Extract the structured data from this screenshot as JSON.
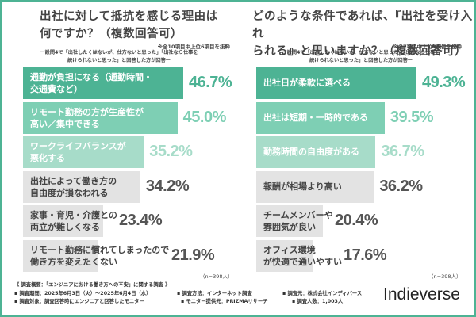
{
  "colors": {
    "border": "#4db394",
    "bar_dark": "#4db394",
    "bar_mid": "#7ecfb4",
    "bar_light": "#a7dcc9",
    "bar_gray": "#e3e3e3",
    "value_dark": "#4db394",
    "value_mid": "#7ecfb4",
    "value_light": "#a7dcc9",
    "value_gray": "#555555"
  },
  "chart_data": [
    {
      "type": "bar",
      "orientation": "horizontal",
      "title": "出社に対して抵抗を感じる理由は何ですか？（複数回答可）",
      "note": "※全10項目中上位6項目を抜粋",
      "subtitle": "ー設問4で「出社したくはないが、仕方ないと思った」「出社なら仕事を続けられないと思った」と回答した方が回答ー",
      "categories": [
        "通勤が負担になる（通勤時間・交通費など）",
        "リモート勤務の方が生産性が高い／集中できる",
        "ワークライフバランスが悪化する",
        "出社によって働き方の自由度が損なわれる",
        "家事・育児・介護との両立が難しくなる",
        "リモート勤務に慣れてしまったので働き方を変えたくない"
      ],
      "label_lines": [
        [
          "通勤が負担になる（通勤時間・",
          "交通費など）"
        ],
        [
          "リモート勤務の方が生産性が",
          "高い／集中できる"
        ],
        [
          "ワークライフバランスが",
          "悪化する"
        ],
        [
          "出社によって働き方の",
          "自由度が損なわれる"
        ],
        [
          "家事・育児・介護との",
          "両立が難しくなる"
        ],
        [
          "リモート勤務に慣れてしまったので",
          "働き方を変えたくない"
        ]
      ],
      "values": [
        46.7,
        45.0,
        35.2,
        34.2,
        23.4,
        21.9
      ],
      "value_labels": [
        "46.7%",
        "45.0%",
        "35.2%",
        "34.2%",
        "23.4%",
        "21.9%"
      ],
      "n_label": "（n=398人）",
      "xlim": [
        0,
        50
      ]
    },
    {
      "type": "bar",
      "orientation": "horizontal",
      "title": "どのような条件であれば、『出社を受け入れられる』と思いますか？（複数回答可）",
      "note": "※全7項目中上位6項目を抜粋",
      "subtitle": "ー設問4で「出社したくはないが、仕方ないと思った」「出社なら仕事を続けられないと思った」と回答した方が回答ー",
      "categories": [
        "出社日が柔軟に選べる",
        "出社は短期・一時的である",
        "勤務時間の自由度がある",
        "報酬が相場より高い",
        "チームメンバーや雰囲気が良い",
        "オフィス環境が快適で通いやすい"
      ],
      "label_lines": [
        [
          "出社日が柔軟に選べる"
        ],
        [
          "出社は短期・一時的である"
        ],
        [
          "勤務時間の自由度がある"
        ],
        [
          "報酬が相場より高い"
        ],
        [
          "チームメンバーや",
          "雰囲気が良い"
        ],
        [
          "オフィス環境",
          "が快適で通いやすい"
        ]
      ],
      "values": [
        49.3,
        39.5,
        36.7,
        36.2,
        20.4,
        17.6
      ],
      "value_labels": [
        "49.3%",
        "39.5%",
        "36.7%",
        "36.2%",
        "20.4%",
        "17.6%"
      ],
      "n_label": "（n=398人）",
      "xlim": [
        0,
        50
      ]
    }
  ],
  "titles": {
    "left_line1": "出社に対して抵抗を感じる理由は",
    "left_line2": "何ですか？（複数回答可）",
    "right_line1": "どのような条件であれば、『出社を受け入れ",
    "right_line2": "られる』と思いますか？（複数回答可）",
    "left_note": "※全10項目中上位6項目を抜粋",
    "right_note": "※全7項目中上位6項目を抜粋",
    "left_sub1": "ー設問4で「出社したくはないが、仕方ないと思った」「出社なら仕事を",
    "left_sub2": "続けられないと思った」と回答した方が回答ー",
    "right_sub1": "ー設問4で「出社したくはないが、仕方ないと思った」「出社なら仕事を",
    "right_sub2": "続けられないと思った」と回答した方が回答ー",
    "left_n": "（n=398人）",
    "right_n": "（n=398人）"
  },
  "footer": {
    "heading": "《 調査概要：「エンジニアにおける働き方への不安」に関する調査 》",
    "period": "▪ 調査期間：2025年6月3日（火）～2025年6月4日（水）",
    "method": "▪ 調査方法：インターネット調査",
    "organizer": "▪ 調査元：株式会社インディバース",
    "target": "▪ 調査対象：調査回答時にエンジニアと回答したモニター",
    "provider": "▪ モニター提供元：PRIZMAリサーチ",
    "count": "▪ 調査人数：1,003人"
  },
  "logo": "Indieverse"
}
